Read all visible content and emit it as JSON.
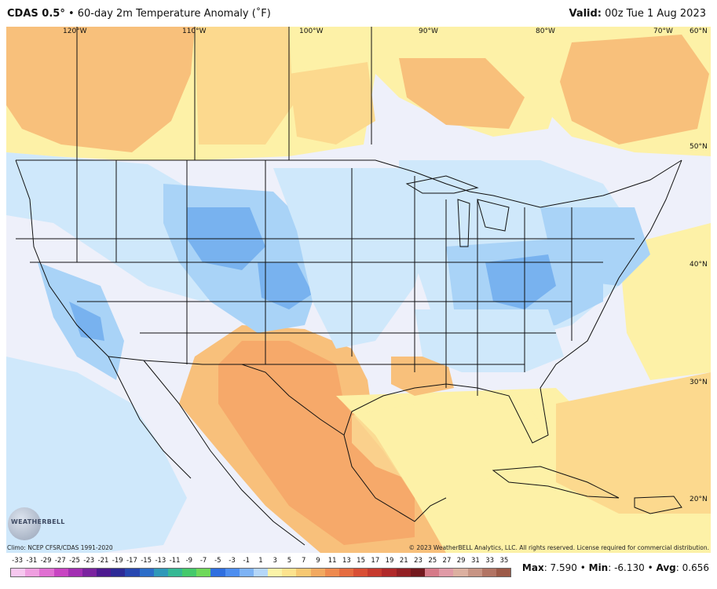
{
  "header": {
    "model": "CDAS 0.5",
    "degree_mark": "°",
    "separator": " • ",
    "description": "60-day 2m Temperature Anomaly (˚F)",
    "valid_label": "Valid:",
    "valid_time": "00z Tue 1 Aug 2023"
  },
  "map": {
    "lon_labels": [
      "120°W",
      "110°W",
      "100°W",
      "90°W",
      "80°W",
      "70°W",
      "60°N"
    ],
    "lat_labels": [
      "50°N",
      "40°N",
      "30°N",
      "20°N"
    ]
  },
  "logo_text": "WEATHERBELL",
  "footer": {
    "climo": "Climo: NCEP CFSR/CDAS 1991-2020",
    "copyright": "© 2023 WeatherBELL Analytics, LLC. All rights reserved. License required for commercial distribution.",
    "max_label": "Max",
    "max_value": "7.590",
    "min_label": "Min",
    "min_value": "-6.130",
    "avg_label": "Avg",
    "avg_value": "0.656"
  },
  "colorbar": {
    "ticks": [
      "-33",
      "-31",
      "-29",
      "-27",
      "-25",
      "-23",
      "-21",
      "-19",
      "-17",
      "-15",
      "-13",
      "-11",
      "-9",
      "-7",
      "-5",
      "-3",
      "-1",
      "1",
      "3",
      "5",
      "7",
      "9",
      "11",
      "13",
      "15",
      "17",
      "19",
      "21",
      "23",
      "25",
      "27",
      "29",
      "31",
      "33",
      "35"
    ],
    "colors": [
      "#f7c8ef",
      "#ef9fe0",
      "#e06fd2",
      "#c844c2",
      "#a22fb2",
      "#7a239f",
      "#4d1a90",
      "#2d2a96",
      "#2747b0",
      "#2c6dc8",
      "#2f98b9",
      "#36b894",
      "#45c96b",
      "#6fd85a",
      "#2f6fe0",
      "#4d8ef0",
      "#7eb3f5",
      "#b5d7f9",
      "#fbf3a8",
      "#fde38e",
      "#f7c872",
      "#f2a960",
      "#ee8a4f",
      "#e56c40",
      "#d94f35",
      "#c63a2e",
      "#b02a2a",
      "#922024",
      "#73191e",
      "#d67a88",
      "#e09aa6",
      "#dcb0a0",
      "#c79484",
      "#b27464",
      "#9c5a48"
    ]
  },
  "colors": {
    "cool_light": "#cfe8fb",
    "cool_mid": "#a9d3f7",
    "cool_strong": "#78b2ef",
    "warm_light": "#fdf1a7",
    "warm_mid": "#fcd98e",
    "warm_strong": "#f6b073",
    "neutral": "#eef0fa",
    "border": "#111111"
  }
}
